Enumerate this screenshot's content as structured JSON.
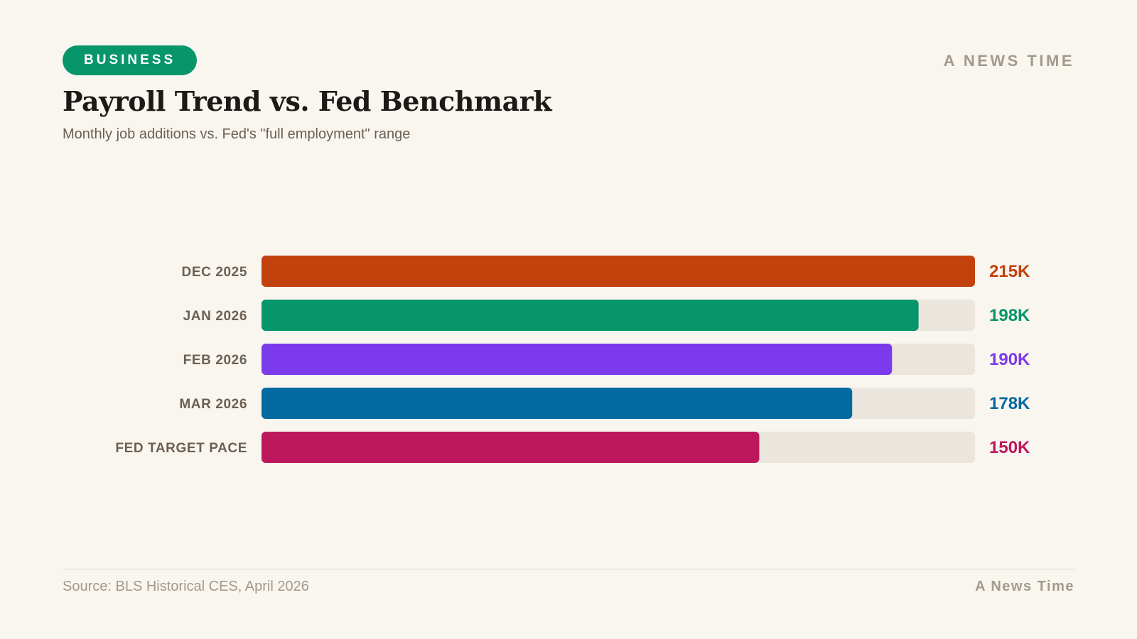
{
  "header": {
    "badge": "BUSINESS",
    "brand": "A NEWS TIME",
    "title": "Payroll Trend vs. Fed Benchmark",
    "subtitle": "Monthly job additions vs. Fed's \"full employment\" range"
  },
  "footer": {
    "source": "Source: BLS Historical CES, April 2026",
    "brand": "A News Time"
  },
  "colors": {
    "background": "#f9f5ef",
    "badge": "#079669",
    "track": "#ebe6dd",
    "category_label": "#6b6054",
    "muted": "#a39a8b"
  },
  "chart_data": {
    "type": "bar",
    "orientation": "horizontal",
    "categories": [
      "DEC 2025",
      "JAN 2026",
      "FEB 2026",
      "MAR 2026",
      "FED TARGET PACE"
    ],
    "values": [
      215,
      198,
      190,
      178,
      150
    ],
    "value_labels": [
      "215K",
      "198K",
      "190K",
      "178K",
      "150K"
    ],
    "unit": "K",
    "bar_colors": [
      "#c2410c",
      "#079669",
      "#7c3aed",
      "#0369a1",
      "#be185d"
    ],
    "xlim": [
      0,
      215
    ],
    "grid": false,
    "legend": "none"
  }
}
